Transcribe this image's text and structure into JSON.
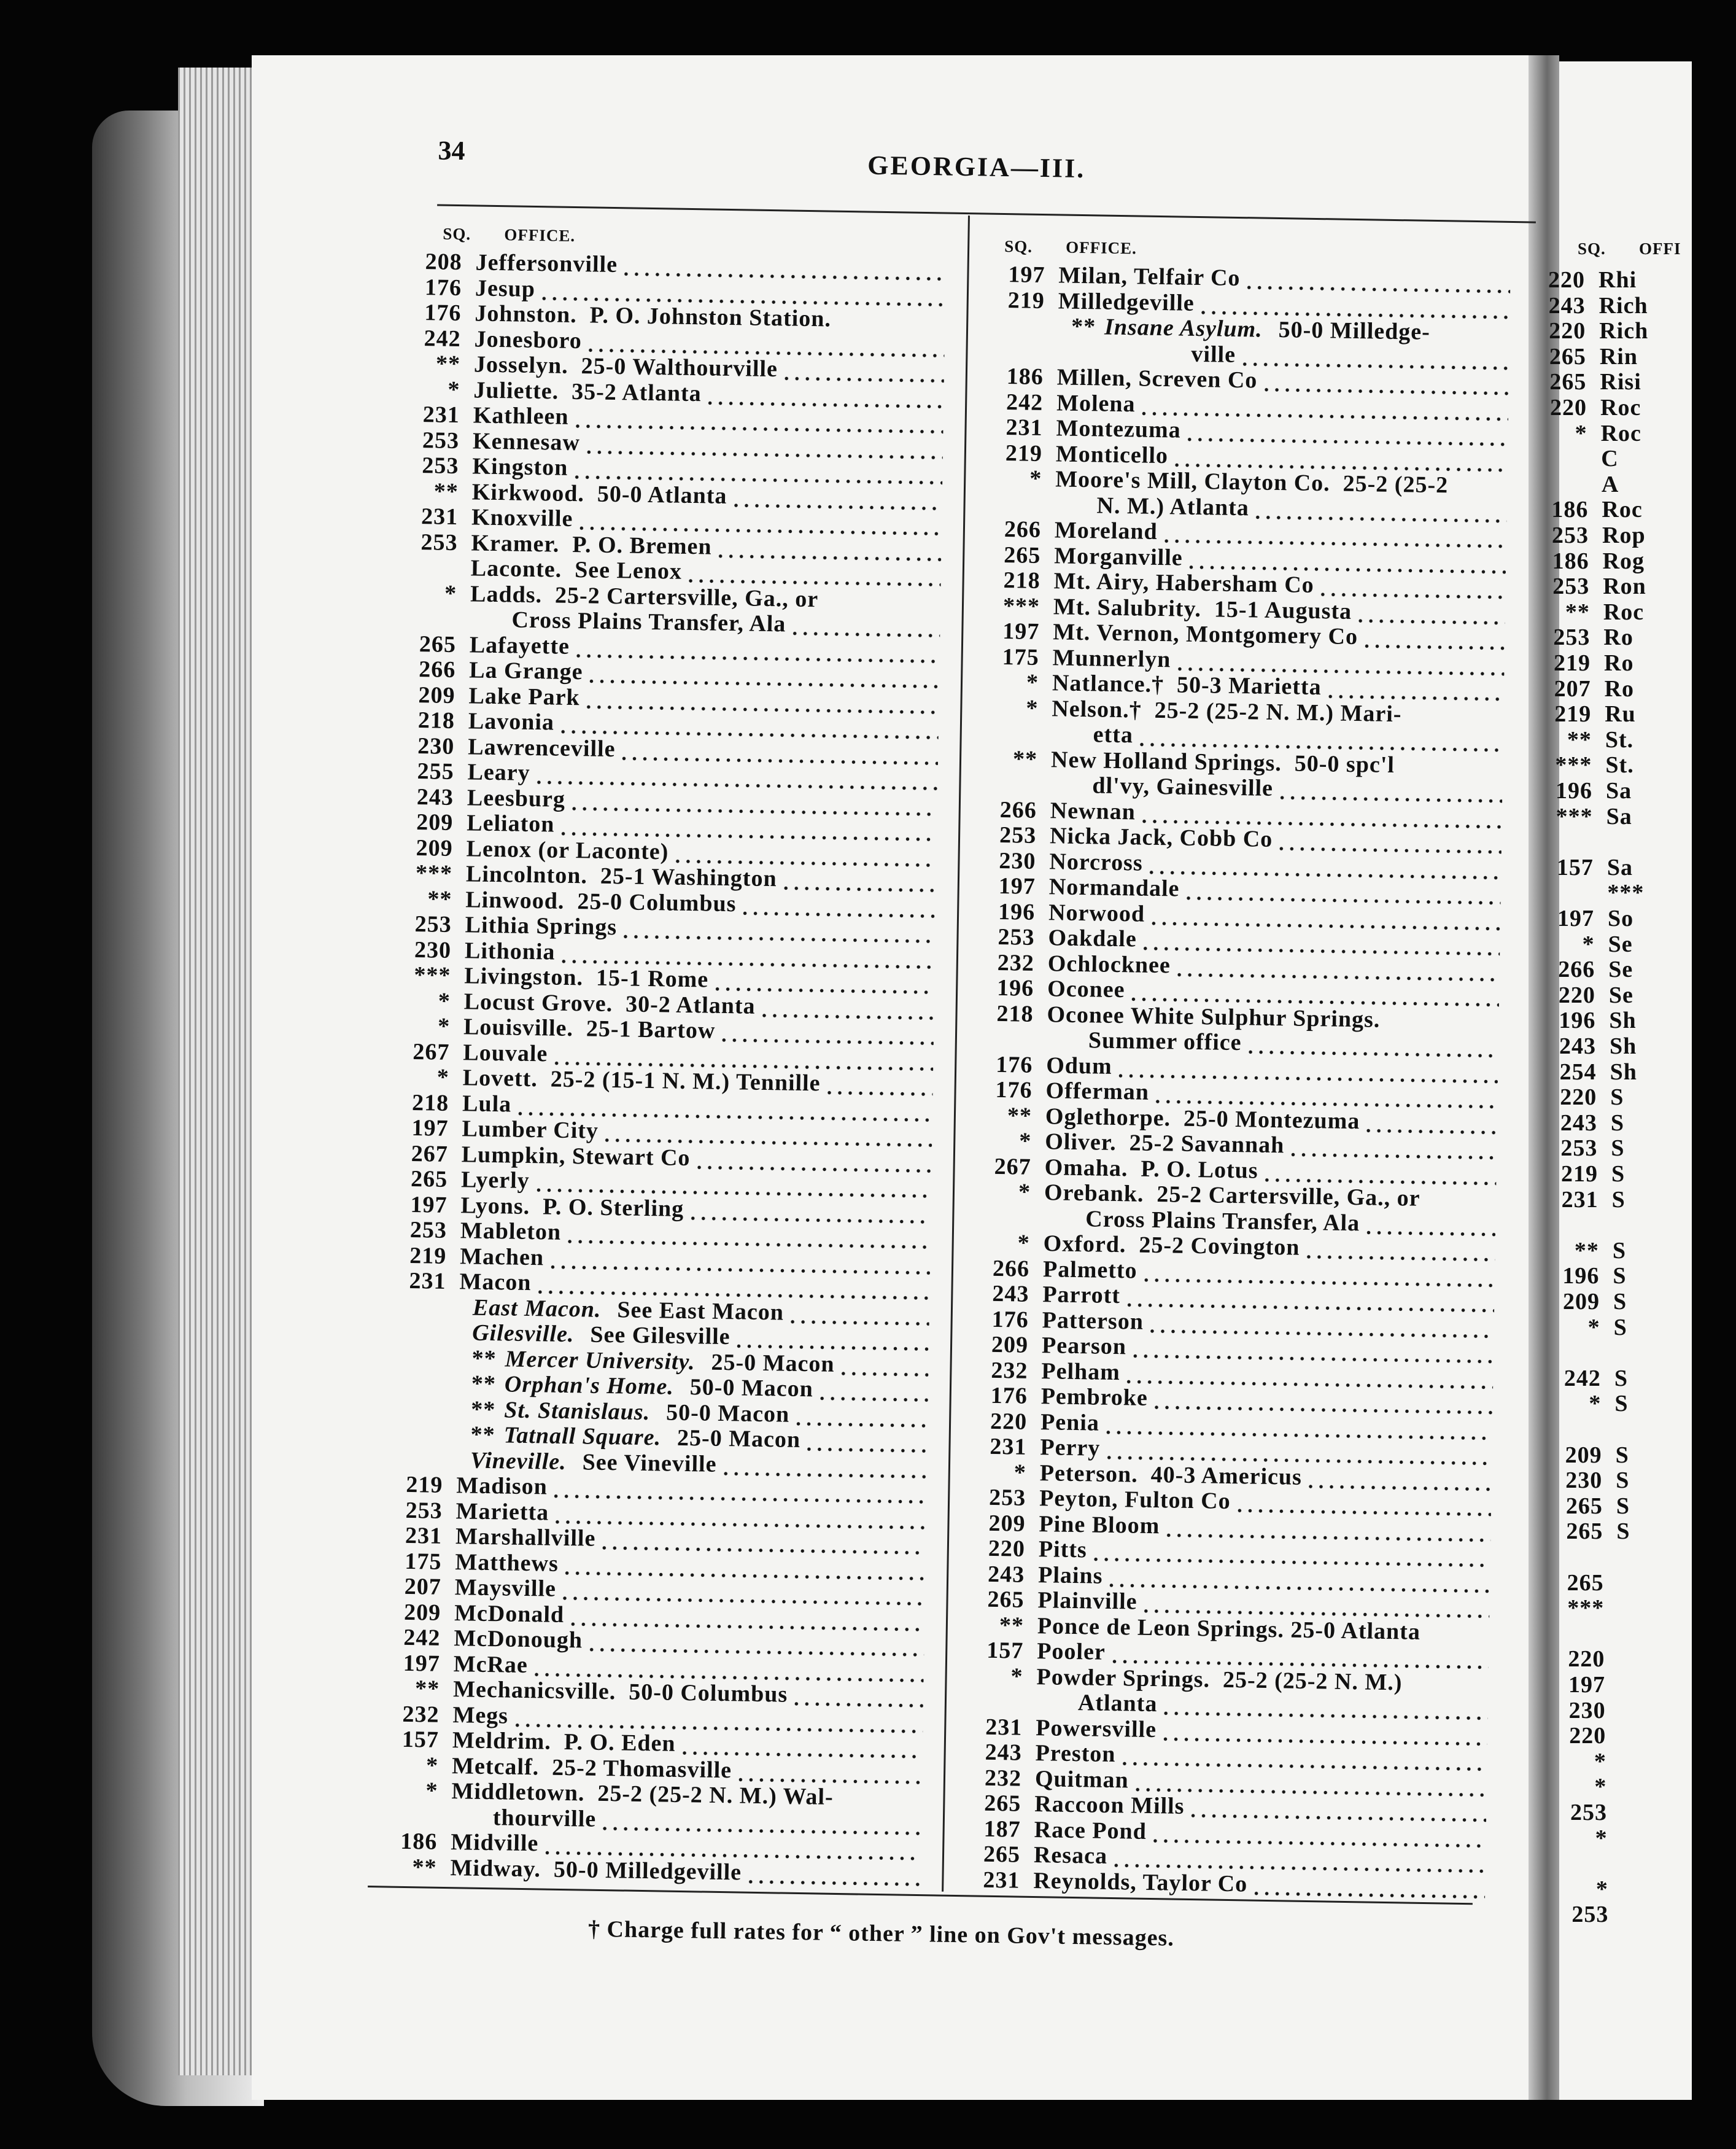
{
  "page_number": "34",
  "running_head": "GEORGIA—III.",
  "column_headers": {
    "sq": "SQ.",
    "office": "OFFICE."
  },
  "footnote": "† Charge full rates for “ other ” line on Gov't messages.",
  "left_column": [
    {
      "sq": "208",
      "office": "Jeffersonville"
    },
    {
      "sq": "176",
      "office": "Jesup"
    },
    {
      "sq": "176",
      "office": "Johnston.  P. O. Johnston Station.",
      "leader": false
    },
    {
      "sq": "242",
      "office": "Jonesboro"
    },
    {
      "sq": "**",
      "office": "Josselyn.  25-0 Walthourville"
    },
    {
      "sq": "*",
      "office": "Juliette.  35-2 Atlanta"
    },
    {
      "sq": "231",
      "office": "Kathleen"
    },
    {
      "sq": "253",
      "office": "Kennesaw"
    },
    {
      "sq": "253",
      "office": "Kingston"
    },
    {
      "sq": "**",
      "office": "Kirkwood.  50-0 Atlanta"
    },
    {
      "sq": "231",
      "office": "Knoxville"
    },
    {
      "sq": "253",
      "office": "Kramer.  P. O. Bremen"
    },
    {
      "sq": "",
      "office": "Laconte.  See Lenox"
    },
    {
      "sq": "*",
      "office": "Ladds.  25-2 Cartersville, Ga., or",
      "leader": false
    },
    {
      "sq": "",
      "office": "Cross Plains Transfer, Ala",
      "kind": "cont"
    },
    {
      "sq": "265",
      "office": "Lafayette"
    },
    {
      "sq": "266",
      "office": "La Grange"
    },
    {
      "sq": "209",
      "office": "Lake Park"
    },
    {
      "sq": "218",
      "office": "Lavonia"
    },
    {
      "sq": "230",
      "office": "Lawrenceville"
    },
    {
      "sq": "255",
      "office": "Leary"
    },
    {
      "sq": "243",
      "office": "Leesburg"
    },
    {
      "sq": "209",
      "office": "Leliaton"
    },
    {
      "sq": "209",
      "office": "Lenox (or Laconte)"
    },
    {
      "sq": "***",
      "office": "Lincolnton.  25-1 Washington"
    },
    {
      "sq": "**",
      "office": "Linwood.  25-0 Columbus"
    },
    {
      "sq": "253",
      "office": "Lithia Springs"
    },
    {
      "sq": "230",
      "office": "Lithonia"
    },
    {
      "sq": "***",
      "office": "Livingston.  15-1 Rome"
    },
    {
      "sq": "*",
      "office": "Locust Grove.  30-2 Atlanta"
    },
    {
      "sq": "*",
      "office": "Louisville.  25-1 Bartow"
    },
    {
      "sq": "267",
      "office": "Louvale"
    },
    {
      "sq": "*",
      "office": "Lovett.  25-2 (15-1 N. M.) Tennille"
    },
    {
      "sq": "218",
      "office": "Lula"
    },
    {
      "sq": "197",
      "office": "Lumber City"
    },
    {
      "sq": "267",
      "office": "Lumpkin, Stewart Co"
    },
    {
      "sq": "265",
      "office": "Lyerly"
    },
    {
      "sq": "197",
      "office": "Lyons.  P. O. Sterling"
    },
    {
      "sq": "253",
      "office": "Mableton"
    },
    {
      "sq": "219",
      "office": "Machen"
    },
    {
      "sq": "231",
      "office": "Macon"
    },
    {
      "sq": "",
      "kind": "sub",
      "italic": "East Macon.",
      "office": "See East Macon"
    },
    {
      "sq": "",
      "kind": "sub",
      "italic": "Gilesville.",
      "office": "See Gilesville"
    },
    {
      "sq": "",
      "kind": "sub",
      "mark": "**",
      "italic": "Mercer University.",
      "office": "25-0 Macon"
    },
    {
      "sq": "",
      "kind": "sub",
      "mark": "**",
      "italic": "Orphan's Home.",
      "office": "50-0 Macon"
    },
    {
      "sq": "",
      "kind": "sub",
      "mark": "**",
      "italic": "St. Stanislaus.",
      "office": "50-0 Macon"
    },
    {
      "sq": "",
      "kind": "sub",
      "mark": "**",
      "italic": "Tatnall Square.",
      "office": "25-0 Macon"
    },
    {
      "sq": "",
      "kind": "sub",
      "italic": "Vineville.",
      "office": "See Vineville"
    },
    {
      "sq": "219",
      "office": "Madison"
    },
    {
      "sq": "253",
      "office": "Marietta"
    },
    {
      "sq": "231",
      "office": "Marshallville"
    },
    {
      "sq": "175",
      "office": "Matthews"
    },
    {
      "sq": "207",
      "office": "Maysville"
    },
    {
      "sq": "209",
      "office": "McDonald"
    },
    {
      "sq": "242",
      "office": "McDonough"
    },
    {
      "sq": "197",
      "office": "McRae"
    },
    {
      "sq": "**",
      "office": "Mechanicsville.  50-0 Columbus"
    },
    {
      "sq": "232",
      "office": "Megs"
    },
    {
      "sq": "157",
      "office": "Meldrim.  P. O. Eden"
    },
    {
      "sq": "*",
      "office": "Metcalf.  25-2 Thomasville"
    },
    {
      "sq": "*",
      "office": "Middletown.  25-2 (25-2 N. M.) Wal-",
      "leader": false
    },
    {
      "sq": "",
      "office": "thourville",
      "kind": "cont"
    },
    {
      "sq": "186",
      "office": "Midville"
    },
    {
      "sq": "**",
      "office": "Midway.  50-0 Milledgeville"
    }
  ],
  "right_column": [
    {
      "sq": "197",
      "office": "Milan, Telfair Co"
    },
    {
      "sq": "219",
      "office": "Milledgeville"
    },
    {
      "sq": "",
      "kind": "sub",
      "mark": "**",
      "italic": "Insane Asylum.",
      "office": "50-0 Milledge-",
      "leader": false
    },
    {
      "sq": "",
      "kind": "cont2",
      "office": "ville"
    },
    {
      "sq": "186",
      "office": "Millen, Screven Co"
    },
    {
      "sq": "242",
      "office": "Molena"
    },
    {
      "sq": "231",
      "office": "Montezuma"
    },
    {
      "sq": "219",
      "office": "Monticello"
    },
    {
      "sq": "*",
      "office": "Moore's Mill, Clayton Co.  25-2 (25-2",
      "leader": false
    },
    {
      "sq": "",
      "kind": "cont",
      "office": "N. M.) Atlanta"
    },
    {
      "sq": "266",
      "office": "Moreland"
    },
    {
      "sq": "265",
      "office": "Morganville"
    },
    {
      "sq": "218",
      "office": "Mt. Airy, Habersham Co"
    },
    {
      "sq": "***",
      "office": "Mt. Salubrity.  15-1 Augusta"
    },
    {
      "sq": "197",
      "office": "Mt. Vernon, Montgomery Co"
    },
    {
      "sq": "175",
      "office": "Munnerlyn"
    },
    {
      "sq": "*",
      "office": "Natlance.†  50-3 Marietta"
    },
    {
      "sq": "*",
      "office": "Nelson.†  25-2 (25-2 N. M.) Mari-",
      "leader": false
    },
    {
      "sq": "",
      "kind": "cont",
      "office": "etta"
    },
    {
      "sq": "**",
      "office": "New Holland Springs.  50-0 spc'l",
      "leader": false
    },
    {
      "sq": "",
      "kind": "cont",
      "office": "dl'vy, Gainesville"
    },
    {
      "sq": "266",
      "office": "Newnan"
    },
    {
      "sq": "253",
      "office": "Nicka Jack, Cobb Co"
    },
    {
      "sq": "230",
      "office": "Norcross"
    },
    {
      "sq": "197",
      "office": "Normandale"
    },
    {
      "sq": "196",
      "office": "Norwood"
    },
    {
      "sq": "253",
      "office": "Oakdale"
    },
    {
      "sq": "232",
      "office": "Ochlocknee"
    },
    {
      "sq": "196",
      "office": "Oconee"
    },
    {
      "sq": "218",
      "office": "Oconee White Sulphur Springs.",
      "leader": false
    },
    {
      "sq": "",
      "kind": "cont",
      "office": "Summer office"
    },
    {
      "sq": "176",
      "office": "Odum"
    },
    {
      "sq": "176",
      "office": "Offerman"
    },
    {
      "sq": "**",
      "office": "Oglethorpe.  25-0 Montezuma"
    },
    {
      "sq": "*",
      "office": "Oliver.  25-2 Savannah"
    },
    {
      "sq": "267",
      "office": "Omaha.  P. O. Lotus"
    },
    {
      "sq": "*",
      "office": "Orebank.  25-2 Cartersville, Ga., or",
      "leader": false
    },
    {
      "sq": "",
      "kind": "cont",
      "office": "Cross Plains Transfer, Ala"
    },
    {
      "sq": "*",
      "office": "Oxford.  25-2 Covington"
    },
    {
      "sq": "266",
      "office": "Palmetto"
    },
    {
      "sq": "243",
      "office": "Parrott"
    },
    {
      "sq": "176",
      "office": "Patterson"
    },
    {
      "sq": "209",
      "office": "Pearson"
    },
    {
      "sq": "232",
      "office": "Pelham"
    },
    {
      "sq": "176",
      "office": "Pembroke"
    },
    {
      "sq": "220",
      "office": "Penia"
    },
    {
      "sq": "231",
      "office": "Perry"
    },
    {
      "sq": "*",
      "office": "Peterson.  40-3 Americus"
    },
    {
      "sq": "253",
      "office": "Peyton, Fulton Co"
    },
    {
      "sq": "209",
      "office": "Pine Bloom"
    },
    {
      "sq": "220",
      "office": "Pitts"
    },
    {
      "sq": "243",
      "office": "Plains"
    },
    {
      "sq": "265",
      "office": "Plainville"
    },
    {
      "sq": "**",
      "office": "Ponce de Leon Springs. 25-0 Atlanta",
      "leader": false
    },
    {
      "sq": "157",
      "office": "Pooler"
    },
    {
      "sq": "*",
      "office": "Powder Springs.  25-2 (25-2 N. M.)",
      "leader": false
    },
    {
      "sq": "",
      "kind": "cont",
      "office": "Atlanta"
    },
    {
      "sq": "231",
      "office": "Powersville"
    },
    {
      "sq": "243",
      "office": "Preston"
    },
    {
      "sq": "232",
      "office": "Quitman"
    },
    {
      "sq": "265",
      "office": "Raccoon Mills"
    },
    {
      "sq": "187",
      "office": "Race Pond"
    },
    {
      "sq": "265",
      "office": "Resaca"
    },
    {
      "sq": "231",
      "office": "Reynolds, Taylor Co"
    }
  ],
  "next_page_partial": {
    "header_sq": "SQ.",
    "header_office": "OFFI",
    "rows": [
      [
        "220",
        "Rhi"
      ],
      [
        "243",
        "Rich"
      ],
      [
        "220",
        "Rich"
      ],
      [
        "265",
        "Rin"
      ],
      [
        "265",
        "Risi"
      ],
      [
        "220",
        "Roc"
      ],
      [
        "*",
        "Roc"
      ],
      [
        "",
        "C"
      ],
      [
        "",
        "A"
      ],
      [
        "186",
        "Roc"
      ],
      [
        "253",
        "Rop"
      ],
      [
        "186",
        "Rog"
      ],
      [
        "253",
        "Ron"
      ],
      [
        "**",
        "Roc"
      ],
      [
        "253",
        "Ro"
      ],
      [
        "219",
        "Ro"
      ],
      [
        "207",
        "Ro"
      ],
      [
        "219",
        "Ru"
      ],
      [
        "**",
        "St."
      ],
      [
        "***",
        "St."
      ],
      [
        "196",
        "Sa"
      ],
      [
        "***",
        "Sa"
      ],
      [
        "",
        ""
      ],
      [
        "157",
        "Sa"
      ],
      [
        "",
        "***"
      ],
      [
        "197",
        "So"
      ],
      [
        "*",
        "Se"
      ],
      [
        "266",
        "Se"
      ],
      [
        "220",
        "Se"
      ],
      [
        "196",
        "Sh"
      ],
      [
        "243",
        "Sh"
      ],
      [
        "254",
        "Sh"
      ],
      [
        "220",
        "S"
      ],
      [
        "243",
        "S"
      ],
      [
        "253",
        "S"
      ],
      [
        "219",
        "S"
      ],
      [
        "231",
        "S"
      ],
      [
        "",
        ""
      ],
      [
        "**",
        "S"
      ],
      [
        "196",
        "S"
      ],
      [
        "209",
        "S"
      ],
      [
        "*",
        "S"
      ],
      [
        "",
        ""
      ],
      [
        "242",
        "S"
      ],
      [
        "*",
        "S"
      ],
      [
        "",
        ""
      ],
      [
        "209",
        "S"
      ],
      [
        "230",
        "S"
      ],
      [
        "265",
        "S"
      ],
      [
        "265",
        "S"
      ],
      [
        "",
        ""
      ],
      [
        "265",
        ""
      ],
      [
        "***",
        ""
      ],
      [
        "",
        ""
      ],
      [
        "220",
        ""
      ],
      [
        "197",
        ""
      ],
      [
        "230",
        ""
      ],
      [
        "220",
        ""
      ],
      [
        "*",
        ""
      ],
      [
        "*",
        ""
      ],
      [
        "253",
        ""
      ],
      [
        "*",
        ""
      ],
      [
        "",
        ""
      ],
      [
        "*",
        ""
      ],
      [
        "253",
        ""
      ]
    ]
  }
}
